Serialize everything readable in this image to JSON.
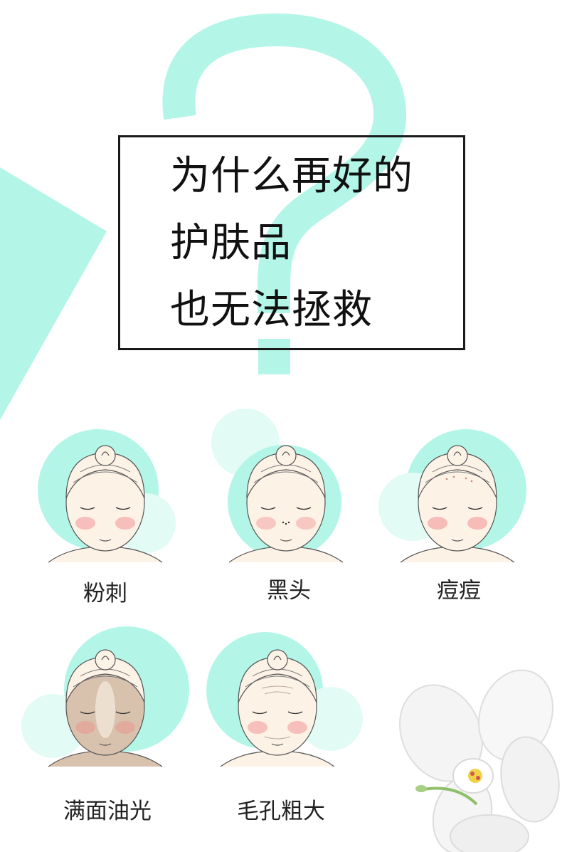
{
  "headline": {
    "lines": [
      "为什么再好的",
      "护肤品",
      "也无法拯救"
    ]
  },
  "problems": [
    {
      "label": "粉刺",
      "icon": "face-whiteheads-icon"
    },
    {
      "label": "黑头",
      "icon": "face-blackheads-icon"
    },
    {
      "label": "痘痘",
      "icon": "face-acne-icon"
    },
    {
      "label": "满面油光",
      "icon": "face-oily-icon"
    },
    {
      "label": "毛孔粗大",
      "icon": "face-large-pores-icon"
    }
  ],
  "colors": {
    "accent": "#b3f6e8",
    "accent_light": "#e3fbf5",
    "text": "#111111",
    "skin": "#fdf2e6",
    "blush": "#f4aaa8"
  },
  "decor": {
    "question_mark_icon": "question-mark-icon",
    "orchid_icon": "white-orchid-icon"
  }
}
